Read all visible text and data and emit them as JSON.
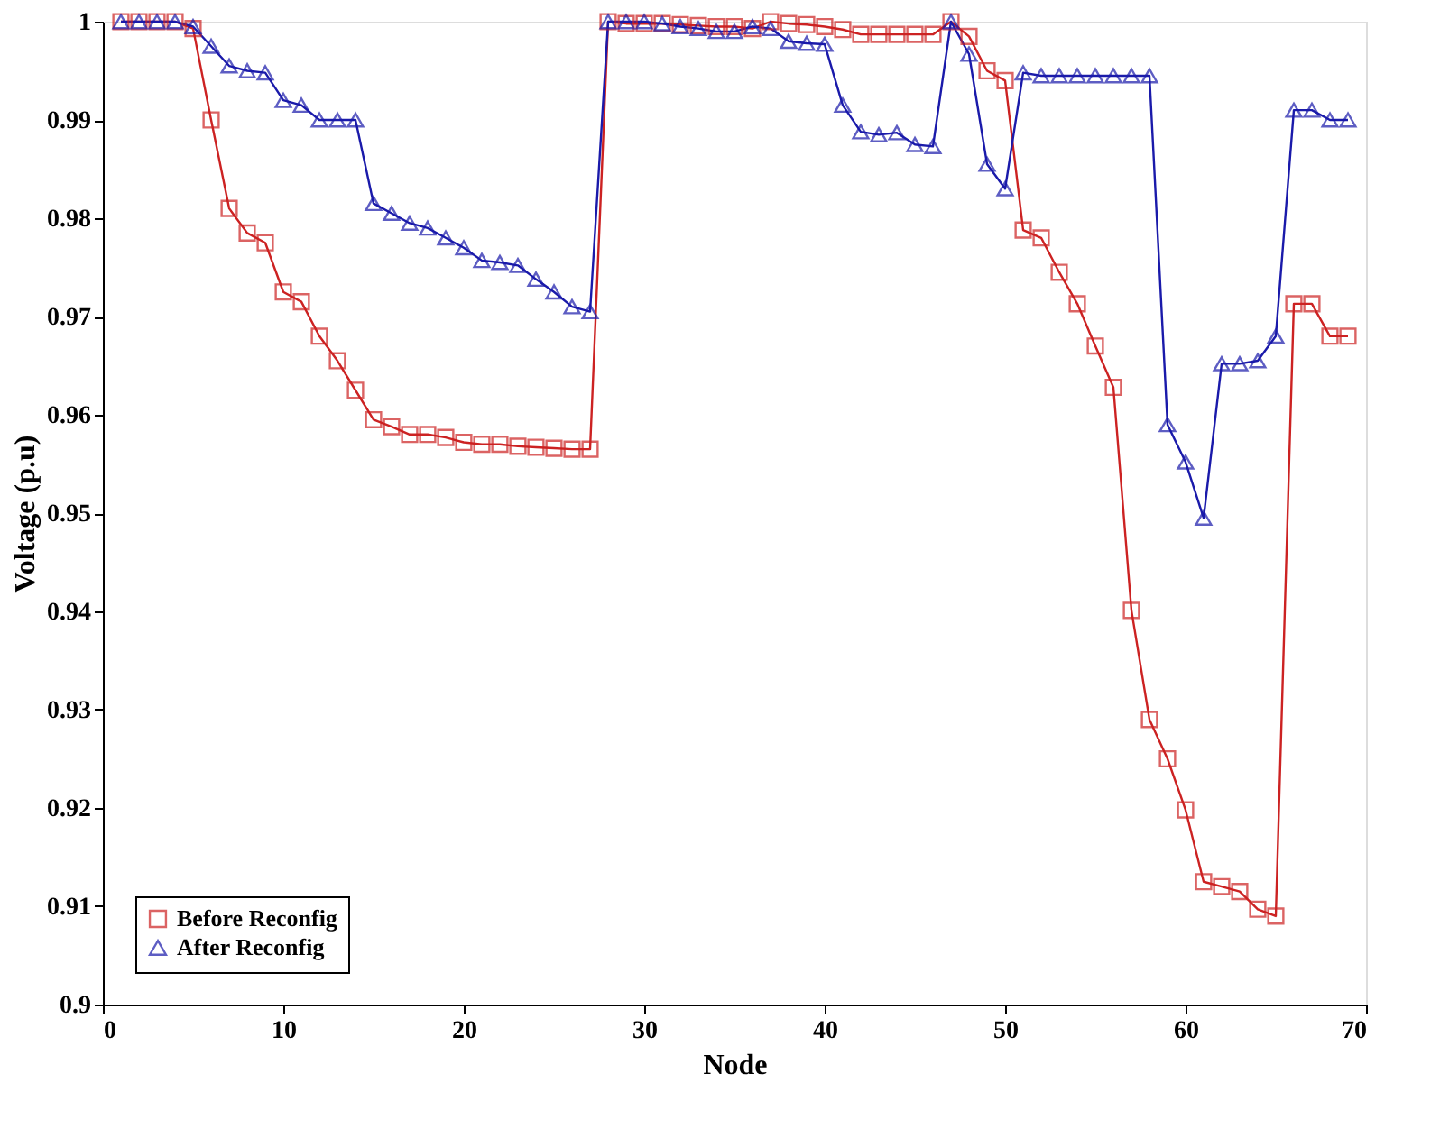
{
  "chart_data": {
    "type": "line",
    "xlabel": "Node",
    "ylabel": "Voltage (p.u)",
    "x": [
      1,
      2,
      3,
      4,
      5,
      6,
      7,
      8,
      9,
      10,
      11,
      12,
      13,
      14,
      15,
      16,
      17,
      18,
      19,
      20,
      21,
      22,
      23,
      24,
      25,
      26,
      27,
      28,
      29,
      30,
      31,
      32,
      33,
      34,
      35,
      36,
      37,
      38,
      39,
      40,
      41,
      42,
      43,
      44,
      45,
      46,
      47,
      48,
      49,
      50,
      51,
      52,
      53,
      54,
      55,
      56,
      57,
      58,
      59,
      60,
      61,
      62,
      63,
      64,
      65,
      66,
      67,
      68,
      69
    ],
    "series": [
      {
        "name": "Before Reconfig",
        "color": "#cc2222",
        "marker": "square",
        "values": [
          1.0,
          1.0,
          1.0,
          1.0,
          0.9993,
          0.99,
          0.981,
          0.9785,
          0.9775,
          0.9725,
          0.9715,
          0.968,
          0.9655,
          0.9625,
          0.9595,
          0.9588,
          0.958,
          0.958,
          0.9577,
          0.9572,
          0.957,
          0.957,
          0.9568,
          0.9567,
          0.9566,
          0.9565,
          0.9565,
          1.0,
          0.9998,
          0.9998,
          0.9998,
          0.9997,
          0.9996,
          0.9995,
          0.9995,
          0.9993,
          1.0,
          0.9998,
          0.9997,
          0.9995,
          0.9992,
          0.9987,
          0.9987,
          0.9987,
          0.9987,
          0.9987,
          1.0,
          0.9985,
          0.995,
          0.994,
          0.9788,
          0.978,
          0.9745,
          0.9713,
          0.967,
          0.9628,
          0.9401,
          0.929,
          0.925,
          0.9198,
          0.9125,
          0.912,
          0.9115,
          0.9097,
          0.909,
          0.9713,
          0.9713,
          0.968,
          0.968
        ]
      },
      {
        "name": "After Reconfig",
        "color": "#1a1aaa",
        "marker": "triangle",
        "values": [
          1.0,
          1.0,
          1.0,
          1.0,
          0.9995,
          0.9975,
          0.9955,
          0.995,
          0.9948,
          0.992,
          0.9915,
          0.99,
          0.99,
          0.99,
          0.9815,
          0.9805,
          0.9795,
          0.979,
          0.978,
          0.977,
          0.9757,
          0.9755,
          0.9752,
          0.9738,
          0.9725,
          0.971,
          0.9705,
          1.0,
          1.0,
          1.0,
          0.9998,
          0.9995,
          0.9993,
          0.999,
          0.999,
          0.9995,
          0.9993,
          0.998,
          0.9978,
          0.9977,
          0.9915,
          0.9888,
          0.9885,
          0.9887,
          0.9875,
          0.9873,
          1.0,
          0.9967,
          0.9855,
          0.983,
          0.9948,
          0.9945,
          0.9945,
          0.9945,
          0.9945,
          0.9945,
          0.9945,
          0.9945,
          0.959,
          0.9552,
          0.9495,
          0.9652,
          0.9652,
          0.9655,
          0.968,
          0.991,
          0.991,
          0.99,
          0.99
        ]
      }
    ],
    "xlim": [
      0,
      70
    ],
    "xticks": [
      0,
      10,
      20,
      30,
      40,
      50,
      60,
      70
    ],
    "ylim": [
      0.9,
      1
    ],
    "yticks": [
      0.9,
      0.91,
      0.92,
      0.93,
      0.94,
      0.95,
      0.96,
      0.97,
      0.98,
      0.99,
      1
    ],
    "grid": false,
    "legend": "bottom left",
    "line_style": "solid"
  }
}
